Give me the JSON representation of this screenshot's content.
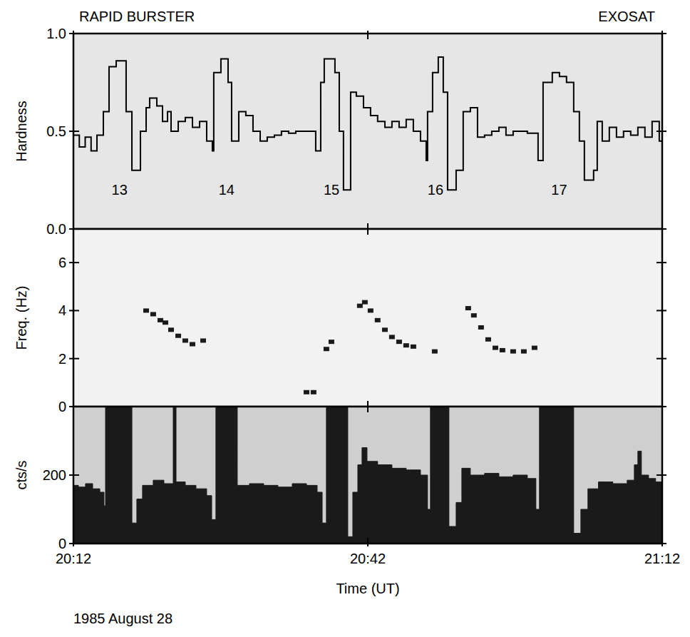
{
  "chart_data": [
    {
      "type": "line",
      "line_style": "steps",
      "title": "RAPID BURSTER",
      "subtitle": "EXOSAT",
      "y_label": "Hardness",
      "color": "#000000",
      "grid": false,
      "tick_labels": "y",
      "xlim": [
        0,
        60
      ],
      "xticks": [
        0,
        30,
        60
      ],
      "ylim": [
        0,
        1
      ],
      "yticks": [
        {
          "value": 0,
          "label": "0.0"
        },
        {
          "value": 0.5,
          "label": "0.5"
        },
        {
          "value": 1,
          "label": "1.0"
        }
      ],
      "x": [
        0,
        0.6,
        1.2,
        1.8,
        2.4,
        3.05,
        3.63,
        4.36,
        5.37,
        5.96,
        6.83,
        7.41,
        7.77,
        8.5,
        9.08,
        9.59,
        9.95,
        10.68,
        11.4,
        12.13,
        12.86,
        13.58,
        14.16,
        14.3,
        15.03,
        15.76,
        16.12,
        16.85,
        17.57,
        18.3,
        19.03,
        19.75,
        20.48,
        21.2,
        21.93,
        22.66,
        23.38,
        24.69,
        25.2,
        25.56,
        26.65,
        27.09,
        27.52,
        28.25,
        28.83,
        29.56,
        30.28,
        31,
        31.74,
        32.46,
        33.19,
        33.91,
        34.64,
        35.37,
        35.95,
        36.09,
        36.6,
        37.18,
        37.69,
        38.13,
        39,
        39.72,
        40.45,
        41.18,
        41.9,
        42.63,
        43.36,
        44.08,
        44.81,
        46.26,
        47.35,
        47.86,
        48.8,
        49.53,
        50.25,
        50.98,
        51.56,
        52.07,
        53.01,
        53.38,
        53.89,
        54.61,
        55.34,
        56.06,
        56.79,
        57.52,
        58.24,
        58.97,
        59.7
      ],
      "values": [
        0.48,
        0.42,
        0.47,
        0.4,
        0.48,
        0.6,
        0.83,
        0.86,
        0.6,
        0.3,
        0.5,
        0.62,
        0.67,
        0.63,
        0.55,
        0.6,
        0.5,
        0.55,
        0.57,
        0.52,
        0.55,
        0.45,
        0.4,
        0.8,
        0.87,
        0.75,
        0.45,
        0.6,
        0.58,
        0.5,
        0.45,
        0.47,
        0.48,
        0.5,
        0.49,
        0.5,
        0.5,
        0.4,
        0.75,
        0.87,
        0.8,
        0.5,
        0.2,
        0.7,
        0.68,
        0.62,
        0.58,
        0.55,
        0.52,
        0.55,
        0.52,
        0.56,
        0.5,
        0.45,
        0.35,
        0.6,
        0.8,
        0.88,
        0.7,
        0.2,
        0.3,
        0.6,
        0.62,
        0.47,
        0.48,
        0.5,
        0.52,
        0.48,
        0.5,
        0.49,
        0.35,
        0.75,
        0.8,
        0.78,
        0.75,
        0.6,
        0.45,
        0.25,
        0.3,
        0.55,
        0.45,
        0.52,
        0.47,
        0.5,
        0.48,
        0.52,
        0.47,
        0.55,
        0.45
      ],
      "annotations": [
        {
          "text": "13",
          "x": 4.7,
          "y": 0.2
        },
        {
          "text": "14",
          "x": 15.6,
          "y": 0.2
        },
        {
          "text": "15",
          "x": 26.3,
          "y": 0.2
        },
        {
          "text": "16",
          "x": 36.9,
          "y": 0.2
        },
        {
          "text": "17",
          "x": 49.5,
          "y": 0.2
        }
      ]
    },
    {
      "type": "scatter",
      "marker": "square",
      "y_label": "Freq. (Hz)",
      "color": "#1a1a1a",
      "grid": false,
      "tick_labels": "y",
      "xlim": [
        0,
        60
      ],
      "xticks": [
        0,
        30,
        60
      ],
      "ylim": [
        0,
        7.4
      ],
      "yticks": [
        0,
        2,
        4,
        6
      ],
      "x": [
        7.41,
        8.13,
        8.86,
        9.37,
        9.95,
        10.68,
        11.4,
        12.13,
        13.22,
        23.75,
        24.47,
        25.78,
        26.29,
        29.19,
        29.7,
        30.28,
        31,
        31.74,
        32.46,
        33.19,
        33.91,
        34.64,
        36.82,
        40.23,
        40.81,
        41.54,
        42.27,
        43,
        43.72,
        44.81,
        45.9,
        46.99
      ],
      "values": [
        4,
        3.85,
        3.6,
        3.5,
        3.2,
        2.95,
        2.75,
        2.6,
        2.75,
        0.6,
        0.6,
        2.4,
        2.7,
        4.2,
        4.35,
        4,
        3.6,
        3.2,
        2.9,
        2.7,
        2.55,
        2.5,
        2.3,
        4.1,
        3.8,
        3.3,
        2.8,
        2.45,
        2.35,
        2.3,
        2.3,
        2.45
      ]
    },
    {
      "type": "area",
      "line_style": "steps",
      "y_label": "cts/s",
      "x_label": "Time (UT)",
      "color": "#1a1a1a",
      "grid": false,
      "tick_labels": true,
      "xlim": [
        0,
        60
      ],
      "xticks": [
        {
          "value": 0,
          "label": "20:12"
        },
        {
          "value": 30,
          "label": "20:42"
        },
        {
          "value": 60,
          "label": "21:12"
        }
      ],
      "ylim": [
        0,
        400
      ],
      "yticks": [
        0,
        200
      ],
      "x": [
        0,
        0.51,
        1.23,
        1.96,
        2.69,
        3.12,
        3.27,
        5.96,
        6.46,
        7.04,
        8.13,
        9.22,
        10.17,
        10.46,
        11.4,
        12.49,
        13.58,
        14.09,
        14.52,
        16.7,
        17.94,
        19.39,
        20.84,
        22.3,
        23.75,
        24.84,
        25.35,
        25.78,
        27.96,
        28.47,
        28.98,
        29.41,
        29.92,
        31,
        32.46,
        33.91,
        35.37,
        36.09,
        36.38,
        38.27,
        39,
        39.58,
        40.45,
        41.9,
        43.36,
        44.81,
        46.26,
        47.13,
        47.49,
        50.98,
        51.71,
        52.43,
        53.5,
        54.97,
        56.43,
        57.16,
        57.52,
        57.88,
        58.61,
        59.33
      ],
      "values": [
        170,
        165,
        175,
        160,
        150,
        110,
        400,
        60,
        130,
        170,
        185,
        175,
        400,
        180,
        170,
        160,
        140,
        70,
        400,
        170,
        175,
        170,
        165,
        175,
        170,
        150,
        60,
        400,
        20,
        150,
        230,
        280,
        240,
        230,
        220,
        215,
        200,
        100,
        400,
        50,
        120,
        220,
        200,
        205,
        195,
        200,
        190,
        100,
        400,
        30,
        100,
        160,
        180,
        175,
        185,
        230,
        270,
        200,
        190,
        180
      ],
      "annotations": [
        {
          "text": "1985 August 28"
        }
      ]
    }
  ]
}
